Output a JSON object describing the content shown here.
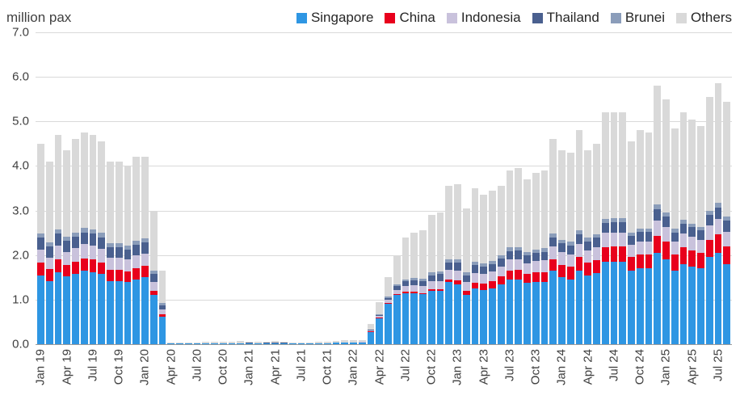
{
  "header": {
    "units_label": "million pax"
  },
  "chart_data": {
    "type": "bar",
    "stacked": true,
    "title": "",
    "ylabel": "million pax",
    "ylim": [
      0,
      7
    ],
    "ytick_step": 1,
    "ytick_decimals": 1,
    "xtick_every": 3,
    "grid": "horizontal",
    "legend_position": "top-right",
    "categories": [
      "Jan 19",
      "Feb 19",
      "Mar 19",
      "Apr 19",
      "May 19",
      "Jun 19",
      "Jul 19",
      "Aug 19",
      "Sep 19",
      "Oct 19",
      "Nov 19",
      "Dec 19",
      "Jan 20",
      "Feb 20",
      "Mar 20",
      "Apr 20",
      "May 20",
      "Jun 20",
      "Jul 20",
      "Aug 20",
      "Sep 20",
      "Oct 20",
      "Nov 20",
      "Dec 20",
      "Jan 21",
      "Feb 21",
      "Mar 21",
      "Apr 21",
      "May 21",
      "Jun 21",
      "Jul 21",
      "Aug 21",
      "Sep 21",
      "Oct 21",
      "Nov 21",
      "Dec 21",
      "Jan 22",
      "Feb 22",
      "Mar 22",
      "Apr 22",
      "May 22",
      "Jun 22",
      "Jul 22",
      "Aug 22",
      "Sep 22",
      "Oct 22",
      "Nov 22",
      "Dec 22",
      "Jan 23",
      "Feb 23",
      "Mar 23",
      "Apr 23",
      "May 23",
      "Jun 23",
      "Jul 23",
      "Aug 23",
      "Sep 23",
      "Oct 23",
      "Nov 23",
      "Dec 23",
      "Jan 24",
      "Feb 24",
      "Mar 24",
      "Apr 24",
      "May 24",
      "Jun 24",
      "Jul 24",
      "Aug 24",
      "Sep 24",
      "Oct 24",
      "Nov 24",
      "Dec 24",
      "Jan 25",
      "Feb 25",
      "Mar 25",
      "Apr 25",
      "May 25",
      "Jun 25",
      "Jul 25",
      "Aug 25"
    ],
    "series": [
      {
        "name": "Singapore",
        "color": "#2e96e3",
        "values": [
          1.55,
          1.42,
          1.62,
          1.52,
          1.58,
          1.65,
          1.62,
          1.57,
          1.42,
          1.42,
          1.39,
          1.46,
          1.5,
          1.1,
          0.62,
          0.01,
          0.01,
          0.01,
          0.01,
          0.01,
          0.01,
          0.02,
          0.02,
          0.02,
          0.02,
          0.01,
          0.02,
          0.02,
          0.02,
          0.01,
          0.01,
          0.01,
          0.01,
          0.02,
          0.03,
          0.03,
          0.03,
          0.04,
          0.28,
          0.58,
          0.9,
          1.1,
          1.15,
          1.15,
          1.12,
          1.2,
          1.2,
          1.4,
          1.35,
          1.1,
          1.25,
          1.22,
          1.25,
          1.35,
          1.45,
          1.45,
          1.38,
          1.4,
          1.4,
          1.65,
          1.5,
          1.45,
          1.65,
          1.55,
          1.6,
          1.85,
          1.85,
          1.85,
          1.65,
          1.7,
          1.7,
          2.05,
          1.9,
          1.65,
          1.8,
          1.75,
          1.7,
          1.95,
          2.05,
          1.8
        ]
      },
      {
        "name": "China",
        "color": "#e8001c",
        "values": [
          0.28,
          0.26,
          0.28,
          0.26,
          0.27,
          0.28,
          0.28,
          0.27,
          0.25,
          0.25,
          0.24,
          0.25,
          0.26,
          0.1,
          0.05,
          0,
          0,
          0,
          0,
          0,
          0,
          0,
          0,
          0,
          0,
          0,
          0,
          0,
          0,
          0,
          0,
          0,
          0,
          0,
          0,
          0,
          0,
          0,
          0.01,
          0.01,
          0.02,
          0.02,
          0.03,
          0.03,
          0.03,
          0.04,
          0.04,
          0.05,
          0.08,
          0.1,
          0.13,
          0.14,
          0.16,
          0.17,
          0.2,
          0.21,
          0.2,
          0.21,
          0.22,
          0.25,
          0.28,
          0.3,
          0.3,
          0.28,
          0.29,
          0.33,
          0.34,
          0.34,
          0.3,
          0.31,
          0.31,
          0.38,
          0.4,
          0.36,
          0.37,
          0.36,
          0.35,
          0.39,
          0.42,
          0.4
        ]
      },
      {
        "name": "Indonesia",
        "color": "#c9c2dc",
        "values": [
          0.3,
          0.27,
          0.31,
          0.29,
          0.3,
          0.31,
          0.31,
          0.3,
          0.27,
          0.27,
          0.27,
          0.28,
          0.28,
          0.2,
          0.11,
          0,
          0,
          0,
          0,
          0,
          0,
          0,
          0,
          0,
          0,
          0,
          0,
          0,
          0,
          0,
          0,
          0,
          0,
          0,
          0,
          0.01,
          0.01,
          0.01,
          0.02,
          0.04,
          0.07,
          0.1,
          0.13,
          0.14,
          0.15,
          0.17,
          0.18,
          0.21,
          0.22,
          0.19,
          0.22,
          0.21,
          0.22,
          0.23,
          0.25,
          0.25,
          0.24,
          0.25,
          0.26,
          0.29,
          0.28,
          0.27,
          0.3,
          0.28,
          0.29,
          0.32,
          0.32,
          0.32,
          0.28,
          0.3,
          0.3,
          0.35,
          0.33,
          0.29,
          0.31,
          0.3,
          0.29,
          0.33,
          0.35,
          0.33
        ]
      },
      {
        "name": "Thailand",
        "color": "#4a608f",
        "values": [
          0.26,
          0.24,
          0.27,
          0.25,
          0.26,
          0.27,
          0.27,
          0.26,
          0.24,
          0.24,
          0.23,
          0.25,
          0.25,
          0.18,
          0.1,
          0,
          0,
          0,
          0,
          0,
          0,
          0,
          0,
          0,
          0.01,
          0.01,
          0.01,
          0.01,
          0.01,
          0,
          0,
          0,
          0,
          0,
          0,
          0,
          0,
          0,
          0.01,
          0.03,
          0.05,
          0.08,
          0.1,
          0.11,
          0.12,
          0.14,
          0.15,
          0.17,
          0.18,
          0.16,
          0.18,
          0.17,
          0.17,
          0.18,
          0.19,
          0.19,
          0.18,
          0.19,
          0.19,
          0.21,
          0.2,
          0.2,
          0.22,
          0.2,
          0.21,
          0.23,
          0.23,
          0.23,
          0.2,
          0.21,
          0.21,
          0.25,
          0.24,
          0.21,
          0.22,
          0.22,
          0.21,
          0.24,
          0.25,
          0.24
        ]
      },
      {
        "name": "Brunei",
        "color": "#8b9dba",
        "values": [
          0.1,
          0.09,
          0.1,
          0.1,
          0.1,
          0.1,
          0.1,
          0.1,
          0.09,
          0.09,
          0.09,
          0.09,
          0.09,
          0.07,
          0.04,
          0,
          0,
          0,
          0,
          0,
          0,
          0,
          0,
          0,
          0,
          0,
          0,
          0,
          0,
          0,
          0,
          0,
          0,
          0,
          0,
          0,
          0,
          0,
          0.01,
          0.02,
          0.03,
          0.04,
          0.05,
          0.05,
          0.05,
          0.06,
          0.06,
          0.07,
          0.07,
          0.06,
          0.07,
          0.07,
          0.07,
          0.07,
          0.08,
          0.08,
          0.07,
          0.08,
          0.08,
          0.09,
          0.08,
          0.08,
          0.09,
          0.08,
          0.08,
          0.09,
          0.09,
          0.09,
          0.08,
          0.08,
          0.08,
          0.1,
          0.09,
          0.08,
          0.09,
          0.08,
          0.08,
          0.09,
          0.1,
          0.09
        ]
      },
      {
        "name": "Others",
        "color": "#d9d9d9",
        "values": [
          2.01,
          1.82,
          2.12,
          1.93,
          2.09,
          2.14,
          2.12,
          2.05,
          1.83,
          1.83,
          1.78,
          1.87,
          1.82,
          1.35,
          0.73,
          0.02,
          0.02,
          0.03,
          0.03,
          0.04,
          0.04,
          0.04,
          0.04,
          0.05,
          0.03,
          0.03,
          0.03,
          0.04,
          0.03,
          0.03,
          0.03,
          0.03,
          0.04,
          0.04,
          0.05,
          0.05,
          0.05,
          0.05,
          0.12,
          0.27,
          0.43,
          0.66,
          0.94,
          1.02,
          1.08,
          1.29,
          1.32,
          1.65,
          1.7,
          1.44,
          1.65,
          1.54,
          1.58,
          1.55,
          1.73,
          1.77,
          1.63,
          1.72,
          1.75,
          2.11,
          2.01,
          2.0,
          2.24,
          1.96,
          2.03,
          2.38,
          2.37,
          2.37,
          2.04,
          2.2,
          2.15,
          2.67,
          2.54,
          2.26,
          2.41,
          2.34,
          2.27,
          2.55,
          2.68,
          2.59
        ]
      }
    ]
  }
}
